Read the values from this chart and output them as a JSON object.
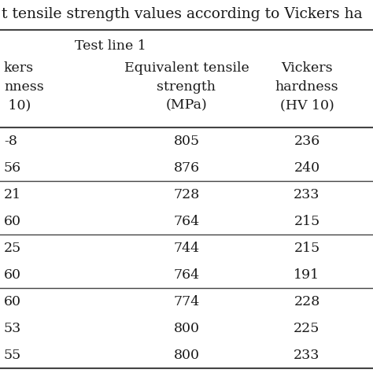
{
  "title": "t tensile strength values according to Vickers ha",
  "section_header": "Test line 1",
  "col1_header": "kers\nnness\n 10)",
  "col2_header": "Equivalent tensile\nstrength\n(MPa)",
  "col3_header": "Vickers\nhardness\n(HV 10)",
  "rows": [
    [
      "-8",
      "805",
      "236"
    ],
    [
      "56",
      "876",
      "240"
    ],
    [
      "21",
      "728",
      "233"
    ],
    [
      "60",
      "764",
      "215"
    ],
    [
      "25",
      "744",
      "215"
    ],
    [
      "60",
      "764",
      "191"
    ],
    [
      "60",
      "774",
      "228"
    ],
    [
      "53",
      "800",
      "225"
    ],
    [
      "55",
      "800",
      "233"
    ]
  ],
  "group_separators_after": [
    1,
    3,
    5
  ],
  "bg_color": "#ffffff",
  "text_color": "#1a1a1a",
  "line_color": "#444444",
  "font_size": 12.5,
  "title_font_size": 13.5
}
